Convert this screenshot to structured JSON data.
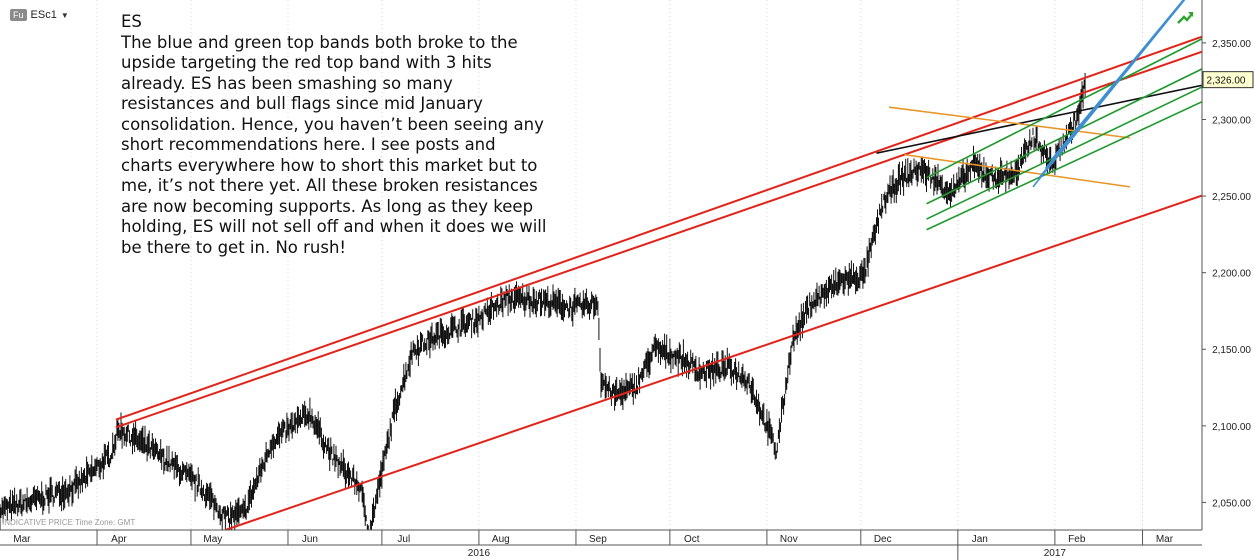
{
  "ticker": {
    "badge": "Fu",
    "symbol": "ESc1"
  },
  "note": {
    "title": "ES",
    "body": "The blue and green top bands both broke to the upside targeting the red top band with 3 hits already. ES has been smashing so many resistances and bull flags since mid January consolidation. Hence, you haven’t been seeing any short recommendations here. I see posts and charts everywhere how to short this market but to me, it’s not there yet. All these broken resistances are now becoming supports. As long as they keep holding, ES will not sell off and when it does we will be there to get in. No rush!"
  },
  "footer_note": "INDICATIVE PRICE   Time Zone: GMT",
  "icons": {
    "corner": "trend-up-icon"
  },
  "colors": {
    "price": "#111111",
    "red": "#e2231a",
    "green": "#1e9a2e",
    "blue": "#3f8fd2",
    "orange": "#e8962a",
    "black": "#111111",
    "price_tag_bg": "#ffffd0"
  },
  "chart_data": {
    "type": "line",
    "title": "",
    "xlabel": "",
    "ylabel": "",
    "x_range": [
      "2016-03-01",
      "2017-03-20"
    ],
    "ylim": [
      2032,
      2378
    ],
    "y_ticks": [
      2050,
      2100,
      2150,
      2200,
      2250,
      2300,
      2350
    ],
    "y_tick_labels": [
      "2,050.00",
      "2,100.00",
      "2,150.00",
      "2,200.00",
      "2,250.00",
      "2,300.00",
      "2,350.00"
    ],
    "last_price_label": "2,326.00",
    "last_price": 2326,
    "x_ticks": [
      {
        "label": "Mar",
        "date": "2016-03-08"
      },
      {
        "label": "Apr",
        "date": "2016-04-08"
      },
      {
        "label": "May",
        "date": "2016-05-08"
      },
      {
        "label": "Jun",
        "date": "2016-06-08"
      },
      {
        "label": "Jul",
        "date": "2016-07-08"
      },
      {
        "label": "Aug",
        "date": "2016-08-08"
      },
      {
        "label": "Sep",
        "date": "2016-09-08"
      },
      {
        "label": "Oct",
        "date": "2016-10-08"
      },
      {
        "label": "Nov",
        "date": "2016-11-08"
      },
      {
        "label": "Dec",
        "date": "2016-12-08"
      },
      {
        "label": "Jan",
        "date": "2017-01-08"
      },
      {
        "label": "Feb",
        "date": "2017-02-08"
      },
      {
        "label": "Mar",
        "date": "2017-03-08"
      }
    ],
    "year_labels": [
      {
        "label": "2016",
        "date": "2016-08-01"
      },
      {
        "label": "2017",
        "date": "2017-02-01"
      }
    ],
    "grid": "vertical-dotted",
    "series": [
      {
        "kind": "price",
        "x": [
          "2016-03-01",
          "2016-03-10",
          "2016-03-25",
          "2016-04-05",
          "2016-04-08",
          "2016-04-18",
          "2016-04-28",
          "2016-05-05",
          "2016-05-12",
          "2016-05-18",
          "2016-05-27",
          "2016-06-08",
          "2016-06-15",
          "2016-06-24",
          "2016-06-27",
          "2016-07-05",
          "2016-07-11",
          "2016-07-20",
          "2016-08-01",
          "2016-08-10",
          "2016-08-20",
          "2016-08-31",
          "2016-09-08",
          "2016-09-09",
          "2016-09-13",
          "2016-09-20",
          "2016-09-26",
          "2016-10-04",
          "2016-10-11",
          "2016-10-20",
          "2016-10-26",
          "2016-11-02",
          "2016-11-04",
          "2016-11-07",
          "2016-11-09",
          "2016-11-15",
          "2016-11-25",
          "2016-12-02",
          "2016-12-08",
          "2016-12-13",
          "2016-12-20",
          "2016-12-30",
          "2017-01-06",
          "2017-01-12",
          "2017-01-20",
          "2017-01-25",
          "2017-01-31",
          "2017-02-03",
          "2017-02-08",
          "2017-02-11"
        ],
        "y": [
          2045,
          2050,
          2060,
          2080,
          2098,
          2085,
          2070,
          2058,
          2040,
          2043,
          2090,
          2108,
          2080,
          2060,
          2030,
          2110,
          2150,
          2160,
          2170,
          2183,
          2182,
          2177,
          2180,
          2130,
          2120,
          2125,
          2150,
          2145,
          2135,
          2138,
          2130,
          2095,
          2083,
          2125,
          2155,
          2180,
          2195,
          2198,
          2245,
          2260,
          2268,
          2252,
          2270,
          2262,
          2265,
          2290,
          2270,
          2282,
          2300,
          2326
        ]
      },
      {
        "kind": "trend-line",
        "color": "red",
        "x": [
          "2016-04-07",
          "2017-03-31"
        ],
        "y": [
          2104,
          2362
        ]
      },
      {
        "kind": "trend-line",
        "color": "red",
        "x": [
          "2016-04-07",
          "2017-03-31"
        ],
        "y": [
          2099,
          2352
        ]
      },
      {
        "kind": "trend-line",
        "color": "red",
        "x": [
          "2016-05-12",
          "2017-03-31"
        ],
        "y": [
          2032,
          2258
        ]
      },
      {
        "kind": "trend-line",
        "color": "black",
        "x": [
          "2016-12-06",
          "2017-03-31"
        ],
        "y": [
          2278,
          2327
        ]
      },
      {
        "kind": "trend-line",
        "color": "orange",
        "x": [
          "2016-12-10",
          "2017-02-25"
        ],
        "y": [
          2308,
          2288
        ]
      },
      {
        "kind": "trend-line",
        "color": "orange",
        "x": [
          "2016-12-15",
          "2017-02-25"
        ],
        "y": [
          2277,
          2256
        ]
      },
      {
        "kind": "trend-line",
        "color": "green",
        "x": [
          "2016-12-22",
          "2017-03-31"
        ],
        "y": [
          2262,
          2364
        ]
      },
      {
        "kind": "trend-line",
        "color": "green",
        "x": [
          "2016-12-22",
          "2017-03-31"
        ],
        "y": [
          2245,
          2344
        ]
      },
      {
        "kind": "trend-line",
        "color": "green",
        "x": [
          "2016-12-22",
          "2017-03-31"
        ],
        "y": [
          2235,
          2332
        ]
      },
      {
        "kind": "trend-line",
        "color": "green",
        "x": [
          "2016-12-22",
          "2017-03-31"
        ],
        "y": [
          2228,
          2322
        ]
      },
      {
        "kind": "trend-line",
        "color": "blue",
        "x": [
          "2017-01-25",
          "2017-03-31"
        ],
        "y": [
          2256,
          2420
        ]
      },
      {
        "kind": "trend-line",
        "color": "blue",
        "x": [
          "2017-01-27",
          "2017-03-31"
        ],
        "y": [
          2262,
          2420
        ]
      },
      {
        "kind": "trend-line",
        "color": "blue",
        "x": [
          "2017-01-29",
          "2017-03-31"
        ],
        "y": [
          2268,
          2420
        ]
      },
      {
        "kind": "trend-line",
        "color": "blue",
        "x": [
          "2017-01-31",
          "2017-03-31"
        ],
        "y": [
          2274,
          2420
        ]
      }
    ]
  }
}
